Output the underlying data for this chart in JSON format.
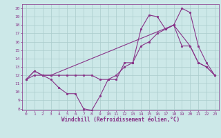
{
  "background_color": "#cce8e8",
  "grid_color": "#aacccc",
  "line_color": "#883388",
  "xlabel": "Windchill (Refroidissement éolien,°C)",
  "xlim": [
    -0.5,
    23.5
  ],
  "ylim": [
    7.8,
    20.5
  ],
  "yticks": [
    8,
    9,
    10,
    11,
    12,
    13,
    14,
    15,
    16,
    17,
    18,
    19,
    20
  ],
  "xticks": [
    0,
    1,
    2,
    3,
    4,
    5,
    6,
    7,
    8,
    9,
    10,
    11,
    12,
    13,
    14,
    15,
    16,
    17,
    18,
    19,
    20,
    21,
    22,
    23
  ],
  "line1_x": [
    0,
    1,
    2,
    3,
    4,
    5,
    6,
    7,
    8,
    9,
    10,
    11,
    12,
    13,
    14,
    15,
    16,
    17,
    18,
    19,
    20,
    21,
    22,
    23
  ],
  "line1_y": [
    11.5,
    12.5,
    12.0,
    11.5,
    10.5,
    9.8,
    9.8,
    8.0,
    7.8,
    9.5,
    11.5,
    11.5,
    13.5,
    13.5,
    17.5,
    19.2,
    19.0,
    17.5,
    18.0,
    20.0,
    19.5,
    15.5,
    13.5,
    12.0
  ],
  "line2_x": [
    0,
    1,
    2,
    3,
    4,
    5,
    6,
    7,
    8,
    9,
    10,
    11,
    12,
    13,
    14,
    15,
    16,
    17,
    18,
    19,
    20,
    21,
    22,
    23
  ],
  "line2_y": [
    11.5,
    12.5,
    12.0,
    12.0,
    12.0,
    12.0,
    12.0,
    12.0,
    12.0,
    11.5,
    11.5,
    12.0,
    13.0,
    13.5,
    15.5,
    16.0,
    17.0,
    17.5,
    18.0,
    15.5,
    15.5,
    13.5,
    13.0,
    12.0
  ],
  "line3_x": [
    0,
    1,
    2,
    3,
    18,
    20,
    21,
    22,
    23
  ],
  "line3_y": [
    11.5,
    12.0,
    12.0,
    12.0,
    18.0,
    15.5,
    13.5,
    13.0,
    12.0
  ],
  "marker_size": 2,
  "linewidth": 0.8,
  "tick_fontsize": 4.5,
  "xlabel_fontsize": 5.5
}
